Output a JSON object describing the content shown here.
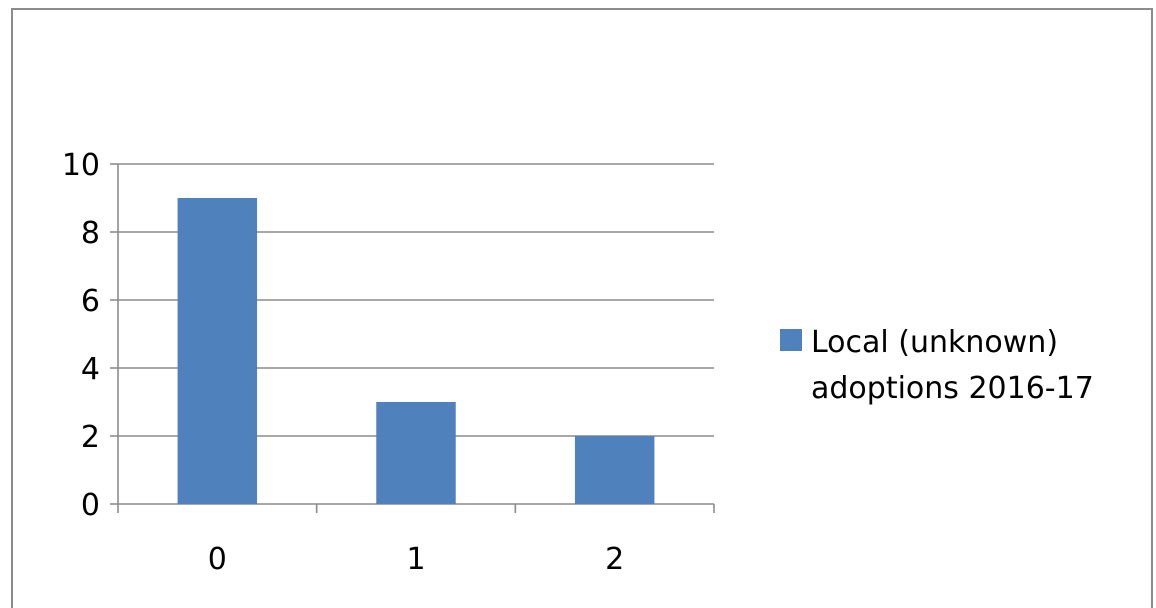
{
  "chart_data": {
    "type": "bar",
    "title": "",
    "xlabel": "",
    "ylabel": "",
    "categories": [
      "0",
      "1",
      "2"
    ],
    "series": [
      {
        "name": "Local (unknown) adoptions 2016-17",
        "values": [
          9,
          3,
          2
        ],
        "color": "#4f81bd"
      }
    ],
    "ylim": [
      0,
      10
    ],
    "yticks": [
      0,
      2,
      4,
      6,
      8,
      10
    ],
    "grid": true,
    "legend_position": "right",
    "legend_lines": [
      "Local (unknown)",
      "adoptions 2016-17"
    ]
  }
}
